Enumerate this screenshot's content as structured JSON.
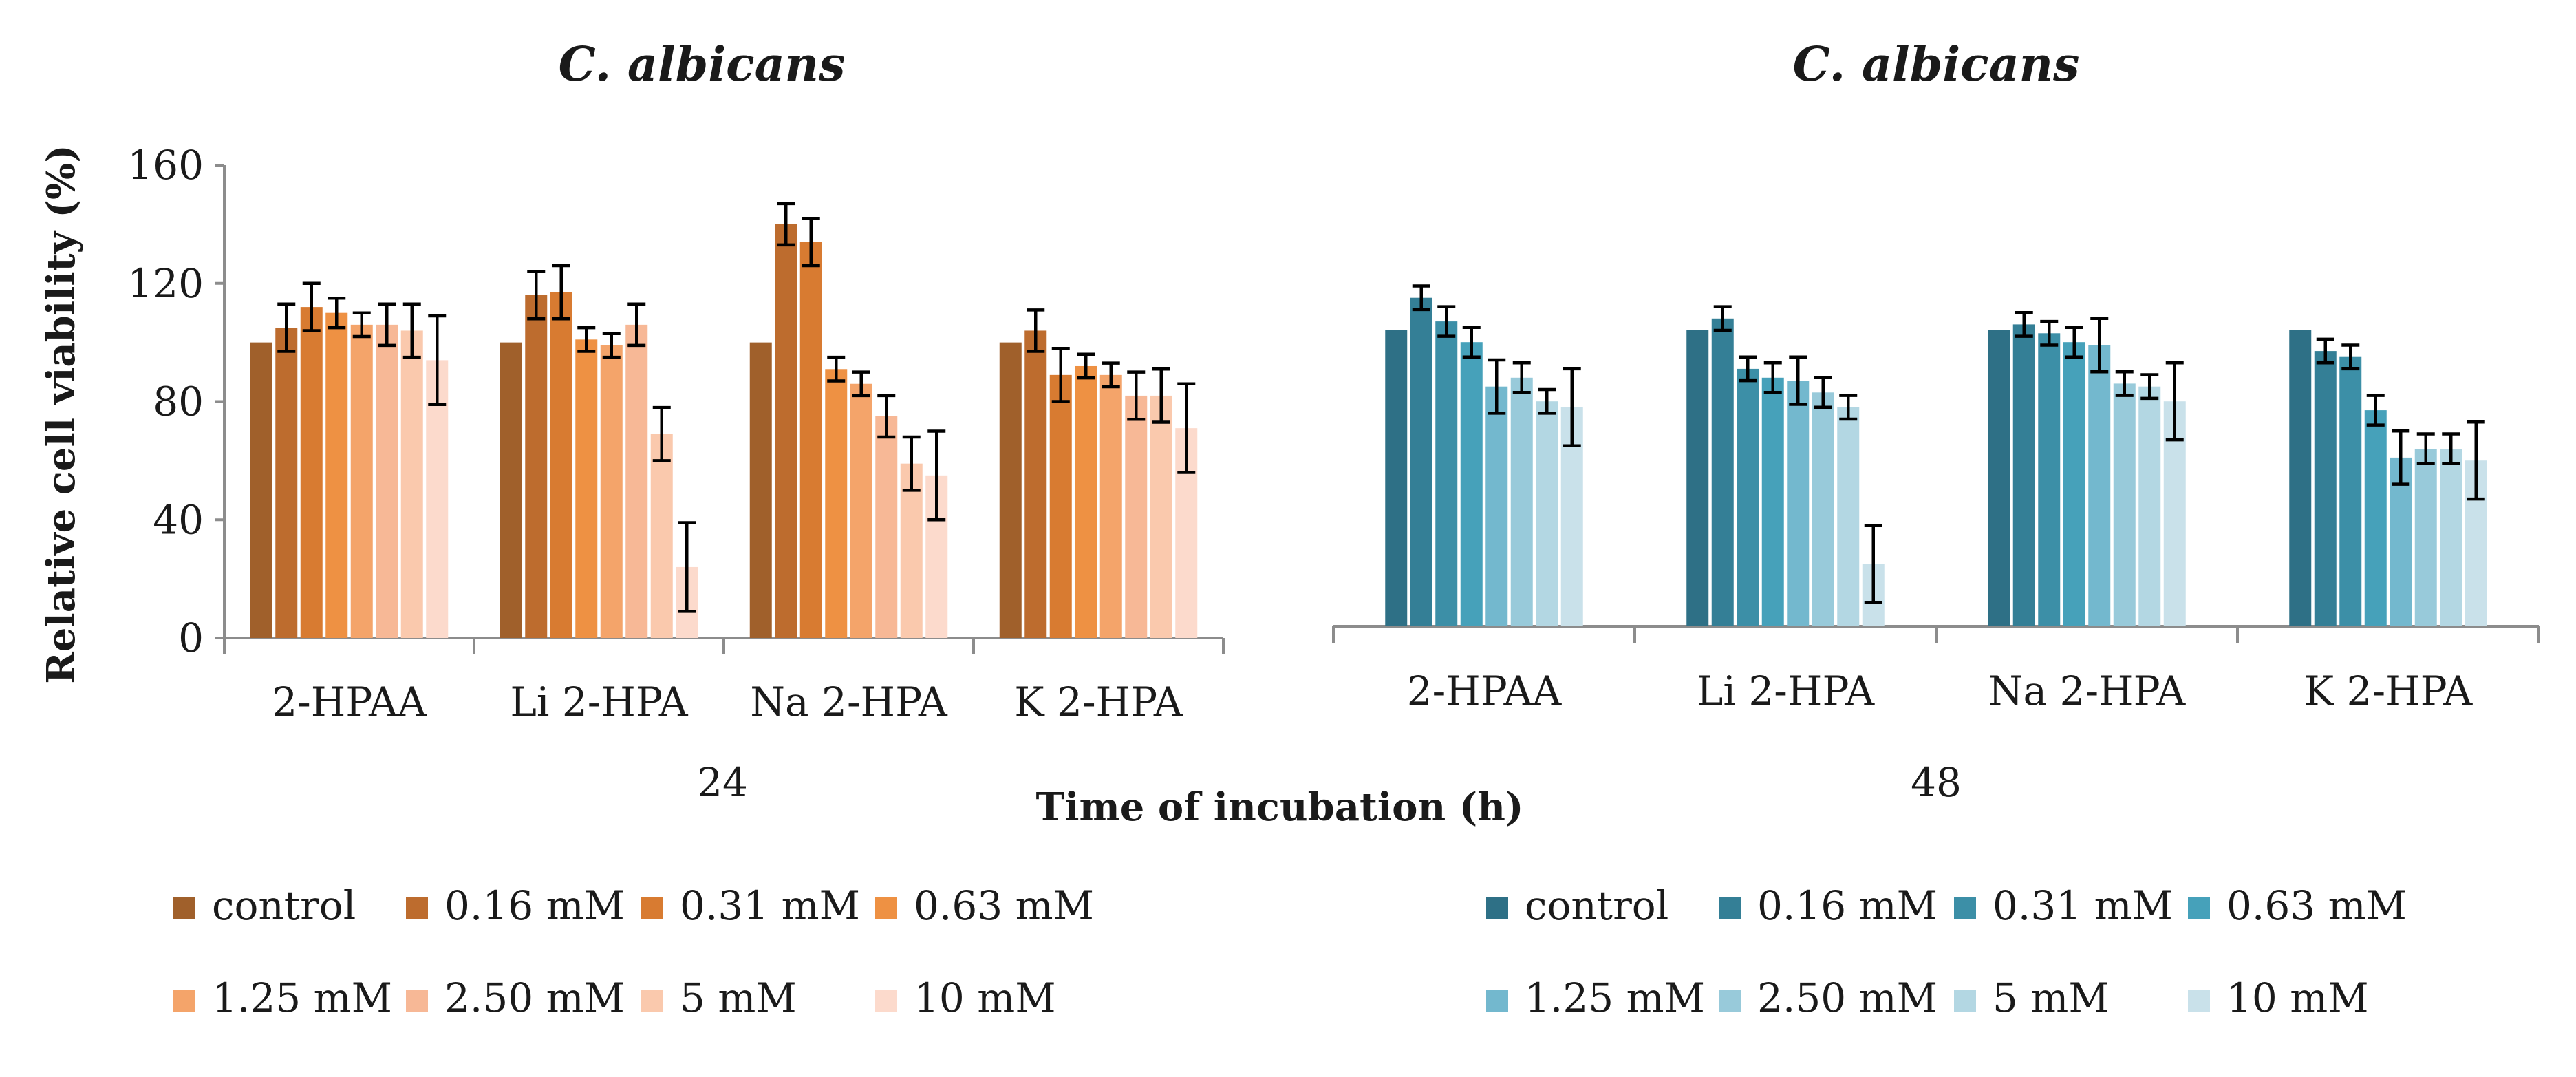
{
  "chart_data": {
    "type": "bar",
    "title": "",
    "ylabel": "Relative cell viability (%)",
    "xlabel": "Time of incubation (h)",
    "series_names": [
      "control",
      "0.16 mM",
      "0.31 mM",
      "0.63 mM",
      "1.25 mM",
      "2.50 mM",
      "5 mM",
      "10 mM"
    ],
    "panels": [
      {
        "title": "C. albicans",
        "time": "24",
        "ylim": [
          0,
          160
        ],
        "yticks": [
          "0",
          "40",
          "80",
          "120",
          "160"
        ],
        "show_y_axis": true,
        "categories": [
          "2-HPAA",
          "Li 2-HPA",
          "Na 2-HPA",
          "K 2-HPA"
        ],
        "colors": [
          "#A0602B",
          "#BD6C2E",
          "#D87B31",
          "#EE9143",
          "#F4A46A",
          "#F7B896",
          "#FAC9AD",
          "#FCDACC"
        ],
        "values": [
          [
            100,
            105,
            112,
            110,
            106,
            106,
            104,
            94
          ],
          [
            100,
            116,
            117,
            101,
            99,
            106,
            69,
            24
          ],
          [
            100,
            140,
            134,
            91,
            86,
            75,
            59,
            55
          ],
          [
            100,
            104,
            89,
            92,
            89,
            82,
            82,
            71
          ]
        ],
        "errors": [
          [
            0,
            8,
            8,
            5,
            4,
            7,
            9,
            15
          ],
          [
            0,
            8,
            9,
            4,
            4,
            7,
            9,
            15
          ],
          [
            0,
            7,
            8,
            4,
            4,
            7,
            9,
            15
          ],
          [
            0,
            7,
            9,
            4,
            4,
            8,
            9,
            15
          ]
        ]
      },
      {
        "title": "C. albicans",
        "time": "48",
        "ylim": [
          0,
          160
        ],
        "yticks": [],
        "show_y_axis": false,
        "categories": [
          "2-HPAA",
          "Li 2-HPA",
          "Na 2-HPA",
          "K 2-HPA"
        ],
        "colors": [
          "#2E7086",
          "#347F96",
          "#3C8FA7",
          "#46A1BA",
          "#73B8CE",
          "#98CADA",
          "#B3D7E3",
          "#C9E1EA"
        ],
        "values": [
          [
            100,
            111,
            103,
            96,
            81,
            84,
            76,
            74
          ],
          [
            100,
            104,
            87,
            84,
            83,
            79,
            74,
            21
          ],
          [
            100,
            102,
            99,
            96,
            95,
            82,
            81,
            76
          ],
          [
            100,
            93,
            91,
            73,
            57,
            60,
            60,
            56
          ]
        ],
        "errors": [
          [
            0,
            4,
            5,
            5,
            9,
            5,
            4,
            13
          ],
          [
            0,
            4,
            4,
            5,
            8,
            5,
            4,
            13
          ],
          [
            0,
            4,
            4,
            5,
            9,
            4,
            4,
            13
          ],
          [
            0,
            4,
            4,
            5,
            9,
            5,
            5,
            13
          ]
        ]
      }
    ],
    "legends": [
      {
        "rows": [
          [
            "control",
            "0.16 mM",
            "0.31 mM",
            "0.63 mM"
          ],
          [
            "1.25 mM",
            "2.50 mM",
            "5 mM",
            "10 mM"
          ]
        ],
        "colors": [
          "#A0602B",
          "#BD6C2E",
          "#D87B31",
          "#EE9143",
          "#F4A46A",
          "#F7B896",
          "#FAC9AD",
          "#FCDACC"
        ]
      },
      {
        "rows": [
          [
            "control",
            "0.16 mM",
            "0.31 mM",
            "0.63 mM"
          ],
          [
            "1.25 mM",
            "2.50 mM",
            "5 mM",
            "10 mM"
          ]
        ],
        "colors": [
          "#2E7086",
          "#347F96",
          "#3C8FA7",
          "#46A1BA",
          "#73B8CE",
          "#98CADA",
          "#B3D7E3",
          "#C9E1EA"
        ]
      }
    ]
  }
}
